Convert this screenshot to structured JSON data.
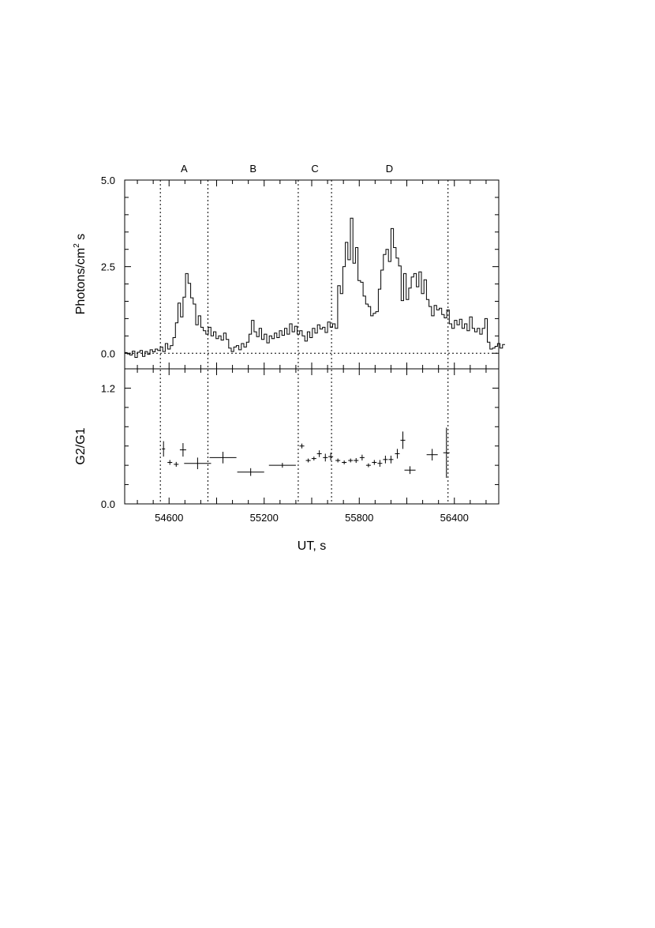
{
  "chart_data": [
    {
      "type": "line",
      "style": "step histogram",
      "xlabel": "UT, s",
      "ylabel": "Photons/cm",
      "ylabel_sup": "2",
      "ylabel_tail": " s",
      "xlim": [
        54320,
        56680
      ],
      "ylim": [
        -0.45,
        5.0
      ],
      "y_ticks": [
        0.0,
        2.5,
        5.0
      ],
      "y_tick_labels": [
        "0.0",
        "2.5",
        "5.0"
      ],
      "x_ticks": [
        54600,
        55200,
        55800,
        56400
      ],
      "x_tick_labels": [
        "54600",
        "55200",
        "55800",
        "56400"
      ],
      "zero_line": 0.0,
      "phase_boundaries": [
        54545,
        54845,
        55415,
        55625,
        56360
      ],
      "phases": [
        {
          "label": "A",
          "center": 54695
        },
        {
          "label": "B",
          "center": 55130
        },
        {
          "label": "C",
          "center": 55520
        },
        {
          "label": "D",
          "center": 55990
        }
      ],
      "bin_width": 16,
      "x_start": 54320,
      "values": [
        0.02,
        -0.02,
        -0.05,
        0.06,
        -0.12,
        0.03,
        0.08,
        -0.09,
        0.05,
        -0.03,
        0.1,
        0.04,
        0.12,
        0.08,
        0.18,
        0.05,
        0.28,
        0.12,
        0.22,
        0.45,
        0.88,
        1.45,
        1.05,
        1.62,
        2.3,
        2.02,
        1.6,
        1.42,
        0.82,
        1.08,
        0.75,
        0.65,
        0.55,
        0.75,
        0.5,
        0.62,
        0.42,
        0.5,
        0.38,
        0.58,
        0.4,
        0.15,
        0.05,
        0.18,
        0.22,
        0.1,
        0.28,
        0.18,
        0.32,
        0.55,
        0.95,
        0.62,
        0.48,
        0.72,
        0.4,
        0.55,
        0.3,
        0.5,
        0.42,
        0.58,
        0.45,
        0.65,
        0.52,
        0.72,
        0.55,
        0.85,
        0.62,
        0.78,
        0.55,
        0.65,
        0.5,
        0.35,
        0.62,
        0.45,
        0.72,
        0.58,
        0.82,
        0.7,
        0.75,
        0.6,
        0.9,
        0.75,
        0.85,
        0.72,
        1.95,
        1.72,
        2.5,
        3.2,
        2.7,
        3.9,
        2.6,
        3.05,
        2.1,
        2.05,
        1.65,
        1.42,
        1.35,
        1.08,
        1.15,
        1.2,
        1.85,
        2.4,
        2.85,
        3.0,
        2.65,
        3.6,
        3.05,
        2.75,
        2.52,
        1.52,
        2.3,
        1.55,
        1.88,
        2.2,
        2.3,
        1.92,
        2.35,
        1.72,
        2.12,
        1.55,
        1.35,
        1.08,
        1.38,
        1.25,
        1.3,
        1.12,
        1.02,
        1.25,
        0.85,
        0.72,
        0.95,
        0.82,
        0.98,
        0.72,
        0.85,
        0.65,
        1.05,
        0.72,
        0.62,
        0.72,
        0.55,
        0.72,
        1.0,
        0.32,
        0.12,
        0.15,
        0.2,
        0.28,
        0.15,
        0.25
      ]
    },
    {
      "type": "scatter",
      "style": "error bars",
      "ylabel": "G2/G1",
      "ylim": [
        0.0,
        1.4
      ],
      "y_ticks": [
        0.0,
        1.2
      ],
      "y_tick_labels": [
        "0.0",
        "1.2"
      ],
      "points": [
        {
          "x": 54565,
          "y": 0.57,
          "xerr": 10,
          "yerr": 0.08
        },
        {
          "x": 54605,
          "y": 0.43,
          "xerr": 15,
          "yerr": 0.025
        },
        {
          "x": 54645,
          "y": 0.41,
          "xerr": 15,
          "yerr": 0.025
        },
        {
          "x": 54688,
          "y": 0.56,
          "xerr": 20,
          "yerr": 0.07
        },
        {
          "x": 54780,
          "y": 0.42,
          "xerr": 85,
          "yerr": 0.06
        },
        {
          "x": 54940,
          "y": 0.48,
          "xerr": 85,
          "yerr": 0.06
        },
        {
          "x": 55115,
          "y": 0.33,
          "xerr": 85,
          "yerr": 0.04
        },
        {
          "x": 55315,
          "y": 0.4,
          "xerr": 85,
          "yerr": 0.025
        },
        {
          "x": 55438,
          "y": 0.6,
          "xerr": 15,
          "yerr": 0.025
        },
        {
          "x": 55478,
          "y": 0.45,
          "xerr": 15,
          "yerr": 0.02
        },
        {
          "x": 55514,
          "y": 0.47,
          "xerr": 15,
          "yerr": 0.02
        },
        {
          "x": 55548,
          "y": 0.52,
          "xerr": 15,
          "yerr": 0.035
        },
        {
          "x": 55586,
          "y": 0.48,
          "xerr": 15,
          "yerr": 0.04
        },
        {
          "x": 55620,
          "y": 0.49,
          "xerr": 15,
          "yerr": 0.04
        },
        {
          "x": 55665,
          "y": 0.45,
          "xerr": 15,
          "yerr": 0.02
        },
        {
          "x": 55705,
          "y": 0.43,
          "xerr": 15,
          "yerr": 0.02
        },
        {
          "x": 55745,
          "y": 0.45,
          "xerr": 15,
          "yerr": 0.02
        },
        {
          "x": 55780,
          "y": 0.45,
          "xerr": 15,
          "yerr": 0.025
        },
        {
          "x": 55818,
          "y": 0.48,
          "xerr": 15,
          "yerr": 0.03
        },
        {
          "x": 55858,
          "y": 0.4,
          "xerr": 15,
          "yerr": 0.02
        },
        {
          "x": 55895,
          "y": 0.43,
          "xerr": 15,
          "yerr": 0.025
        },
        {
          "x": 55930,
          "y": 0.42,
          "xerr": 15,
          "yerr": 0.035
        },
        {
          "x": 55965,
          "y": 0.46,
          "xerr": 15,
          "yerr": 0.04
        },
        {
          "x": 56000,
          "y": 0.46,
          "xerr": 15,
          "yerr": 0.04
        },
        {
          "x": 56040,
          "y": 0.52,
          "xerr": 15,
          "yerr": 0.05
        },
        {
          "x": 56075,
          "y": 0.66,
          "xerr": 15,
          "yerr": 0.09
        },
        {
          "x": 56120,
          "y": 0.35,
          "xerr": 35,
          "yerr": 0.04
        },
        {
          "x": 56260,
          "y": 0.51,
          "xerr": 35,
          "yerr": 0.06
        },
        {
          "x": 56350,
          "y": 0.53,
          "xerr": 20,
          "yerr": 0.26
        }
      ]
    }
  ]
}
